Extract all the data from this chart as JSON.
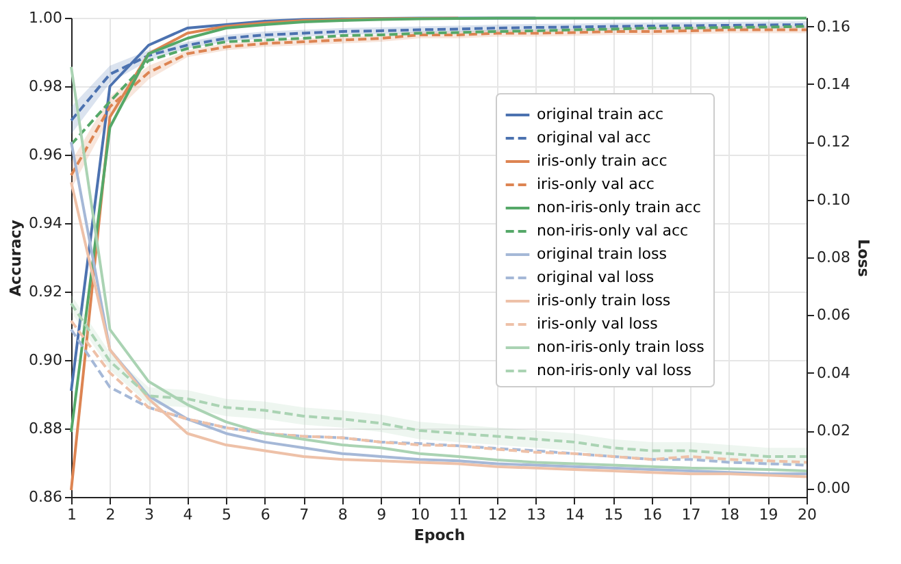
{
  "chart_data": {
    "type": "line",
    "xlabel": "Epoch",
    "ylabel": "Accuracy",
    "y2label": "Loss",
    "grid": true,
    "legend": "right",
    "marker": "none",
    "x": [
      1,
      2,
      3,
      4,
      5,
      6,
      7,
      8,
      9,
      10,
      11,
      12,
      13,
      14,
      15,
      16,
      17,
      18,
      19,
      20
    ],
    "xlim": [
      1,
      20
    ],
    "xticks": [
      1,
      2,
      3,
      4,
      5,
      6,
      7,
      8,
      9,
      10,
      11,
      12,
      13,
      14,
      15,
      16,
      17,
      18,
      19,
      20
    ],
    "ylim": [
      0.86,
      1.0
    ],
    "yticks": [
      0.86,
      0.88,
      {
        "value": 0.9,
        "label": "0.90"
      },
      0.92,
      0.94,
      0.96,
      0.98,
      {
        "value": 1.0,
        "label": "1.00"
      }
    ],
    "y2lim": [
      -0.003,
      0.163
    ],
    "y2ticks": [
      {
        "value": 0,
        "label": "0.00"
      },
      0.02,
      0.04,
      0.06,
      0.08,
      {
        "value": 0.1,
        "label": "0.10"
      },
      0.12,
      0.14,
      0.16
    ],
    "series": [
      {
        "name": "original train acc",
        "color": "#4c72b0",
        "line_style": "solid",
        "values": [
          0.891,
          0.98,
          0.992,
          0.997,
          0.998,
          0.999,
          0.9995,
          0.9997,
          0.9998,
          0.9999,
          0.9999,
          0.9999,
          0.9999,
          null,
          null,
          null,
          null,
          null,
          null,
          null
        ]
      },
      {
        "name": "original val acc",
        "color": "#4c72b0",
        "line_style": "dashed",
        "values": [
          0.97,
          0.9835,
          0.989,
          0.992,
          0.994,
          0.995,
          0.9955,
          0.996,
          0.9962,
          0.9965,
          0.9967,
          0.997,
          0.9972,
          0.9973,
          0.9975,
          0.9976,
          0.9977,
          0.9978,
          0.9979,
          0.998
        ],
        "lower": [
          0.966,
          0.981,
          0.9875,
          0.991,
          0.993,
          0.994,
          0.9945,
          0.995,
          0.9952,
          0.9955,
          0.9957,
          0.996,
          0.9962,
          0.9963,
          0.9965,
          0.9966,
          0.9967,
          0.9968,
          0.9969,
          0.997
        ],
        "upper": [
          0.974,
          0.986,
          0.9905,
          0.993,
          0.995,
          0.996,
          0.9965,
          0.997,
          0.9972,
          0.9975,
          0.9977,
          0.998,
          0.9982,
          0.9983,
          0.9985,
          0.9986,
          0.9987,
          0.9988,
          0.9989,
          0.999
        ]
      },
      {
        "name": "iris-only train acc",
        "color": "#dd8452",
        "line_style": "solid",
        "values": [
          0.862,
          0.971,
          0.9895,
          0.9955,
          0.9975,
          0.9985,
          0.9992,
          0.9995,
          0.9997,
          0.9998,
          0.9999,
          null,
          null,
          null,
          null,
          null,
          null,
          null,
          null,
          null
        ]
      },
      {
        "name": "iris-only val acc",
        "color": "#dd8452",
        "line_style": "dashed",
        "values": [
          0.954,
          0.974,
          0.984,
          0.9895,
          0.9915,
          0.9925,
          0.993,
          0.9935,
          0.994,
          0.995,
          0.995,
          0.9955,
          0.9955,
          0.9957,
          0.996,
          0.996,
          0.9962,
          0.9965,
          0.9965,
          0.9965
        ],
        "lower": [
          0.95,
          0.971,
          0.982,
          0.9885,
          0.9905,
          0.9915,
          0.992,
          0.9925,
          0.993,
          0.994,
          0.994,
          0.9945,
          0.9945,
          0.9947,
          0.995,
          0.995,
          0.9952,
          0.9955,
          0.9955,
          0.9955
        ],
        "upper": [
          0.958,
          0.977,
          0.986,
          0.9905,
          0.9925,
          0.9935,
          0.994,
          0.9945,
          0.995,
          0.996,
          0.996,
          0.9965,
          0.9965,
          0.9967,
          0.997,
          0.997,
          0.9972,
          0.9975,
          0.9975,
          0.9975
        ]
      },
      {
        "name": "non-iris-only train acc",
        "color": "#55a868",
        "line_style": "solid",
        "values": [
          0.879,
          0.968,
          0.9895,
          0.994,
          0.997,
          0.998,
          0.9988,
          0.9992,
          0.9995,
          0.9997,
          0.9998,
          0.9999,
          0.9999,
          0.9999,
          0.9999,
          0.9999,
          0.9999,
          0.9999,
          0.9999,
          0.9999
        ]
      },
      {
        "name": "non-iris-only val acc",
        "color": "#55a868",
        "line_style": "dashed",
        "values": [
          0.963,
          0.9755,
          0.9875,
          0.991,
          0.993,
          0.9935,
          0.994,
          0.9948,
          0.995,
          0.9955,
          0.9957,
          0.996,
          0.9962,
          0.9965,
          0.9967,
          0.997,
          0.997,
          0.9972,
          0.9973,
          0.9975
        ]
      },
      {
        "name": "original train loss",
        "color": "#a5b8d7",
        "line_style": "solid",
        "axis": "y2",
        "values": [
          0.12,
          0.048,
          0.032,
          0.024,
          0.019,
          0.016,
          0.014,
          0.012,
          0.011,
          0.01,
          0.0095,
          0.0085,
          0.008,
          0.0075,
          0.007,
          0.0065,
          0.006,
          0.0055,
          0.005,
          0.005
        ]
      },
      {
        "name": "original val loss",
        "color": "#a5b8d7",
        "line_style": "dashed",
        "axis": "y2",
        "values": [
          0.055,
          0.035,
          0.028,
          0.024,
          0.021,
          0.019,
          0.018,
          0.0175,
          0.016,
          0.0155,
          0.0147,
          0.0138,
          0.013,
          0.012,
          0.011,
          0.01,
          0.01,
          0.009,
          0.0085,
          0.008
        ]
      },
      {
        "name": "iris-only train loss",
        "color": "#eec1a8",
        "line_style": "solid",
        "axis": "y2",
        "values": [
          0.106,
          0.048,
          0.031,
          0.019,
          0.015,
          0.013,
          0.011,
          0.01,
          0.0095,
          0.009,
          0.0085,
          0.0075,
          0.007,
          0.0065,
          0.006,
          0.0055,
          0.005,
          0.005,
          0.0045,
          0.004
        ]
      },
      {
        "name": "iris-only val loss",
        "color": "#eec1a8",
        "line_style": "dashed",
        "axis": "y2",
        "values": [
          0.058,
          0.04,
          0.028,
          0.024,
          0.021,
          0.019,
          0.018,
          0.0175,
          0.016,
          0.015,
          0.0147,
          0.0135,
          0.0125,
          0.012,
          0.011,
          0.01,
          0.011,
          0.01,
          0.0095,
          0.009
        ]
      },
      {
        "name": "non-iris-only train loss",
        "color": "#aad3b3",
        "line_style": "solid",
        "axis": "y2",
        "values": [
          0.146,
          0.055,
          0.037,
          0.029,
          0.023,
          0.019,
          0.017,
          0.015,
          0.014,
          0.012,
          0.011,
          0.0098,
          0.009,
          0.0085,
          0.008,
          0.0075,
          0.007,
          0.0068,
          0.0065,
          0.006
        ]
      },
      {
        "name": "non-iris-only val loss",
        "color": "#aad3b3",
        "line_style": "dashed",
        "axis": "y2",
        "values": [
          0.064,
          0.044,
          0.032,
          0.031,
          0.028,
          0.027,
          0.025,
          0.024,
          0.0225,
          0.02,
          0.019,
          0.018,
          0.017,
          0.016,
          0.014,
          0.013,
          0.013,
          0.012,
          0.011,
          0.011
        ],
        "lower": [
          0.061,
          0.041,
          0.029,
          0.028,
          0.025,
          0.024,
          0.022,
          0.021,
          0.0195,
          0.017,
          0.016,
          0.015,
          0.014,
          0.013,
          0.011,
          0.01,
          0.01,
          0.009,
          0.008,
          0.008
        ],
        "upper": [
          0.067,
          0.047,
          0.035,
          0.034,
          0.031,
          0.03,
          0.028,
          0.027,
          0.0255,
          0.023,
          0.022,
          0.021,
          0.02,
          0.019,
          0.017,
          0.016,
          0.016,
          0.015,
          0.014,
          0.014
        ]
      }
    ]
  }
}
